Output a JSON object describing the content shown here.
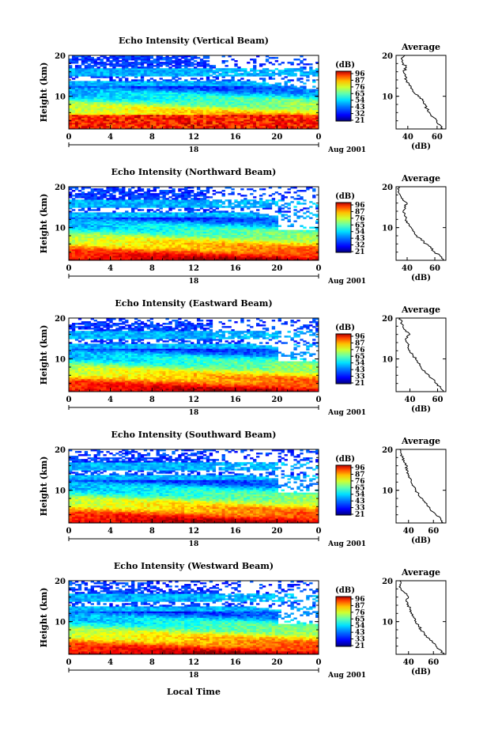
{
  "figure": {
    "date_label": "Aug 2001",
    "xlabel": "Local Time",
    "ylabel": "Height (km)",
    "colorbar_unit": "(dB)",
    "avg_title": "Average",
    "avg_xlabel": "(dB)"
  },
  "chart_data": [
    {
      "type": "heatmap",
      "title": "Echo Intensity (Vertical Beam)",
      "x_ticks": [
        "0",
        "4",
        "8",
        "12",
        "16",
        "20",
        "0"
      ],
      "xlim": [
        0,
        24
      ],
      "day_marker": "18",
      "y_ticks": [
        "10",
        "20"
      ],
      "ylim": [
        2,
        20
      ],
      "colorbar_labels": [
        "96",
        "87",
        "76",
        "65",
        "54",
        "43",
        "32",
        "21"
      ],
      "average": {
        "x_ticks": [
          "40",
          "60"
        ],
        "xlim": [
          32,
          66
        ],
        "heights": [
          2,
          3,
          4,
          5,
          6,
          7,
          8,
          9,
          10,
          11,
          12,
          13,
          14,
          15,
          16,
          17,
          18,
          19,
          20
        ],
        "values": [
          64,
          62,
          60,
          57,
          55,
          53,
          52,
          50,
          47,
          44,
          42,
          41,
          39,
          38,
          37,
          39,
          37,
          36,
          38
        ]
      }
    },
    {
      "type": "heatmap",
      "title": "Echo Intensity (Northward Beam)",
      "x_ticks": [
        "0",
        "4",
        "8",
        "12",
        "16",
        "20",
        "0"
      ],
      "xlim": [
        0,
        24
      ],
      "day_marker": "18",
      "y_ticks": [
        "10",
        "20"
      ],
      "ylim": [
        2,
        20
      ],
      "colorbar_labels": [
        "96",
        "87",
        "76",
        "65",
        "54",
        "43",
        "32",
        "21"
      ],
      "average": {
        "x_ticks": [
          "40",
          "60"
        ],
        "xlim": [
          32,
          68
        ],
        "heights": [
          2,
          3,
          4,
          5,
          6,
          7,
          8,
          9,
          10,
          11,
          12,
          13,
          14,
          15,
          16,
          17,
          18,
          19,
          20
        ],
        "values": [
          66,
          64,
          60,
          57,
          54,
          50,
          47,
          45,
          43,
          41,
          39,
          38,
          37,
          38,
          40,
          37,
          35,
          34,
          34
        ]
      }
    },
    {
      "type": "heatmap",
      "title": "Echo Intensity (Eastward Beam)",
      "x_ticks": [
        "0",
        "4",
        "8",
        "12",
        "16",
        "20",
        "0"
      ],
      "xlim": [
        0,
        24
      ],
      "day_marker": "18",
      "y_ticks": [
        "10",
        "20"
      ],
      "ylim": [
        2,
        20
      ],
      "colorbar_labels": [
        "96",
        "87",
        "76",
        "65",
        "54",
        "43",
        "33",
        "21"
      ],
      "average": {
        "x_ticks": [
          "40",
          "60"
        ],
        "xlim": [
          30,
          66
        ],
        "heights": [
          2,
          3,
          4,
          5,
          6,
          7,
          8,
          9,
          10,
          11,
          12,
          13,
          14,
          15,
          16,
          17,
          18,
          19,
          20
        ],
        "values": [
          64,
          62,
          59,
          57,
          54,
          51,
          48,
          46,
          44,
          42,
          40,
          39,
          38,
          37,
          40,
          37,
          35,
          34,
          33
        ]
      }
    },
    {
      "type": "heatmap",
      "title": "Echo Intensity (Southward Beam)",
      "x_ticks": [
        "0",
        "4",
        "8",
        "12",
        "16",
        "20",
        "0"
      ],
      "xlim": [
        0,
        24
      ],
      "day_marker": "18",
      "y_ticks": [
        "10",
        "20"
      ],
      "ylim": [
        2,
        20
      ],
      "colorbar_labels": [
        "96",
        "87",
        "76",
        "65",
        "54",
        "43",
        "33",
        "21"
      ],
      "average": {
        "x_ticks": [
          "40",
          "60"
        ],
        "xlim": [
          30,
          70
        ],
        "heights": [
          2,
          3,
          4,
          5,
          6,
          7,
          8,
          9,
          10,
          11,
          12,
          13,
          14,
          15,
          16,
          17,
          18,
          19,
          20
        ],
        "values": [
          68,
          66,
          62,
          58,
          56,
          53,
          51,
          48,
          46,
          44,
          42,
          41,
          40,
          38,
          39,
          36,
          35,
          34,
          33
        ]
      }
    },
    {
      "type": "heatmap",
      "title": "Echo Intensity (Westward Beam)",
      "x_ticks": [
        "0",
        "4",
        "8",
        "12",
        "16",
        "20",
        "0"
      ],
      "xlim": [
        0,
        24
      ],
      "day_marker": "18",
      "y_ticks": [
        "10",
        "20"
      ],
      "ylim": [
        2,
        20
      ],
      "colorbar_labels": [
        "96",
        "87",
        "76",
        "65",
        "54",
        "43",
        "33",
        "21"
      ],
      "average": {
        "x_ticks": [
          "40",
          "60"
        ],
        "xlim": [
          30,
          70
        ],
        "heights": [
          2,
          3,
          4,
          5,
          6,
          7,
          8,
          9,
          10,
          11,
          12,
          13,
          14,
          15,
          16,
          17,
          18,
          19,
          20
        ],
        "values": [
          68,
          66,
          62,
          59,
          56,
          53,
          50,
          48,
          46,
          44,
          42,
          41,
          40,
          38,
          40,
          37,
          34,
          33,
          33
        ]
      }
    }
  ]
}
